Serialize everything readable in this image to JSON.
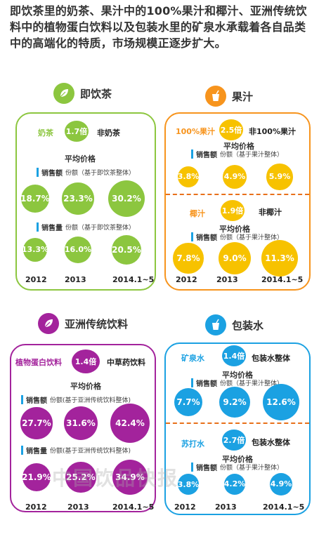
{
  "intro": "即饮茶里的奶茶、果汁中的100%果汁和椰汁、亚洲传统饮料中的植物蛋白饮料以及包装水里的矿泉水承载着各自品类中的高端化的特质，市场规模正逐步扩大。",
  "colors": {
    "tea": "#8cc63f",
    "juice": "#f7941d",
    "juice_circle": "#f7c200",
    "asian": "#a3239c",
    "water": "#1ba1e2",
    "dash": "#e8701a"
  },
  "years": [
    "2012",
    "2013",
    "2014.1~5"
  ],
  "watermark": "中国饮品快报",
  "chart_data": [
    {
      "type": "bubble",
      "category": "即饮茶",
      "icon": "leaf-icon",
      "compare": {
        "left": "奶茶",
        "multiplier": "1.7倍",
        "right": "非奶茶"
      },
      "avg_price_label": "平均价格",
      "series": [
        {
          "caption_bold": "销售额",
          "caption_rest": "份额（基于即饮茶整体）",
          "values": [
            18.7,
            23.3,
            30.2
          ],
          "labels": [
            "18.7%",
            "23.3%",
            "30.2%"
          ]
        },
        {
          "caption_bold": "销售量",
          "caption_rest": "份额（基于即饮茶整体）",
          "values": [
            13.3,
            16.0,
            20.5
          ],
          "labels": [
            "13.3%",
            "16.0%",
            "20.5%"
          ]
        }
      ]
    },
    {
      "type": "bubble",
      "category": "果汁",
      "icon": "juice-cup-icon",
      "groups": [
        {
          "compare": {
            "left": "100%果汁",
            "multiplier": "2.5倍",
            "right": "非100%果汁"
          },
          "avg_price_label": "平均价格",
          "caption_bold": "销售额",
          "caption_rest": "份额（基于果汁整体）",
          "values": [
            3.8,
            4.9,
            5.9
          ],
          "labels": [
            "3.8%",
            "4.9%",
            "5.9%"
          ]
        },
        {
          "compare": {
            "left": "椰汁",
            "multiplier": "1.9倍",
            "right": "非椰汁"
          },
          "avg_price_label": "平均价格",
          "caption_bold": "销售额",
          "caption_rest": "份额（基于果汁整体）",
          "values": [
            7.8,
            9.0,
            11.3
          ],
          "labels": [
            "7.8%",
            "9.0%",
            "11.3%"
          ]
        }
      ]
    },
    {
      "type": "bubble",
      "category": "亚洲传统饮料",
      "icon": "leaf-icon",
      "compare": {
        "left": "植物蛋白饮料",
        "multiplier": "1.4倍",
        "right": "中草药饮料"
      },
      "avg_price_label": "平均价格",
      "series": [
        {
          "caption_bold": "销售额",
          "caption_rest": "份额(基于亚洲传统饮料整体)",
          "values": [
            27.7,
            31.6,
            42.4
          ],
          "labels": [
            "27.7%",
            "31.6%",
            "42.4%"
          ]
        },
        {
          "caption_bold": "销售量",
          "caption_rest": "份额(基于亚洲传统饮料整体)",
          "values": [
            21.9,
            25.2,
            34.9
          ],
          "labels": [
            "21.9%",
            "25.2%",
            "34.9%"
          ]
        }
      ]
    },
    {
      "type": "bubble",
      "category": "包装水",
      "icon": "water-cup-icon",
      "groups": [
        {
          "compare": {
            "left": "矿泉水",
            "multiplier": "1.4倍",
            "right": "包装水整体"
          },
          "avg_price_label": "平均价格",
          "caption_bold": "销售额",
          "caption_rest": "份额（基于果汁整体）",
          "values": [
            7.7,
            9.2,
            12.6
          ],
          "labels": [
            "7.7%",
            "9.2%",
            "12.6%"
          ]
        },
        {
          "compare": {
            "left": "苏打水",
            "multiplier": "2.7倍",
            "right": "包装水整体"
          },
          "avg_price_label": "平均价格",
          "caption_bold": "销售额",
          "caption_rest": "份额（基于果汁整体）",
          "values": [
            3.8,
            4.2,
            4.9
          ],
          "labels": [
            "3.8%",
            "4.2%",
            "4.9%"
          ]
        }
      ]
    }
  ]
}
